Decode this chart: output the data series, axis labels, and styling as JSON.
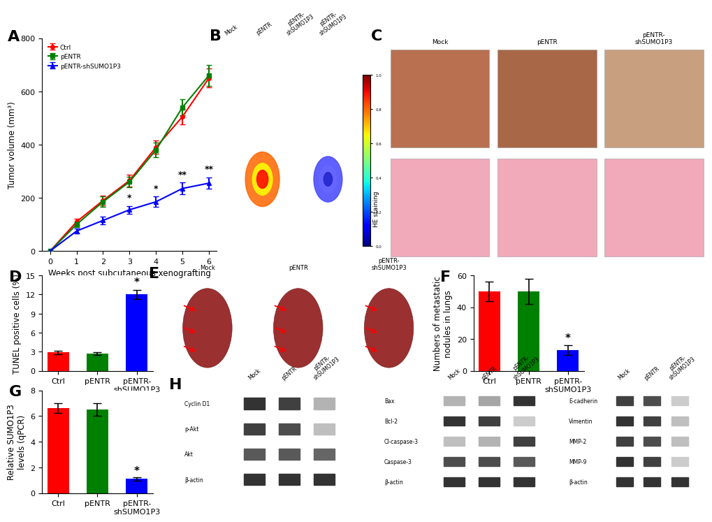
{
  "panel_A": {
    "weeks": [
      0,
      1,
      2,
      3,
      4,
      5,
      6
    ],
    "ctrl_mean": [
      0,
      110,
      190,
      265,
      390,
      505,
      650
    ],
    "ctrl_err": [
      0,
      12,
      18,
      22,
      25,
      30,
      35
    ],
    "pentr_mean": [
      0,
      100,
      185,
      260,
      380,
      540,
      660
    ],
    "pentr_err": [
      0,
      10,
      20,
      20,
      28,
      30,
      40
    ],
    "sh_mean": [
      0,
      75,
      115,
      155,
      185,
      235,
      255
    ],
    "sh_err": [
      0,
      10,
      14,
      14,
      20,
      22,
      22
    ],
    "ctrl_color": "#FF0000",
    "pentr_color": "#008000",
    "sh_color": "#0000FF",
    "xlabel": "Weeks post subcutaneous xenografting",
    "ylabel": "Tumor volume (mm³)",
    "ymax": 800,
    "yticks": [
      0,
      200,
      400,
      600,
      800
    ],
    "sig_weeks": [
      3,
      4,
      5,
      6
    ],
    "sig_labels": [
      "*",
      "*",
      "**",
      "**"
    ],
    "legend": [
      "Ctrl",
      "pENTR",
      "pENTR-shSUMO1P3"
    ]
  },
  "panel_D": {
    "categories": [
      "Ctrl",
      "pENTR",
      "pENTR-\nshSUMO1P3"
    ],
    "values": [
      2.9,
      2.7,
      12.0
    ],
    "errors": [
      0.28,
      0.22,
      0.75
    ],
    "colors": [
      "#FF0000",
      "#008000",
      "#0000FF"
    ],
    "ylabel": "TUNEL positive cells (%)",
    "ymax": 15,
    "yticks": [
      0,
      3,
      6,
      9,
      12,
      15
    ],
    "sig_bar": 2,
    "sig_label": "*"
  },
  "panel_F": {
    "categories": [
      "Ctrl",
      "pENTR",
      "pENTR-\nshSUMO1P3"
    ],
    "values": [
      50,
      50,
      13
    ],
    "errors": [
      6,
      8,
      3
    ],
    "colors": [
      "#FF0000",
      "#008000",
      "#0000FF"
    ],
    "ylabel": "Numbers of metastatic\nnodules in lungs",
    "ymax": 60,
    "yticks": [
      0,
      20,
      40,
      60
    ],
    "sig_bar": 2,
    "sig_label": "*"
  },
  "panel_G": {
    "categories": [
      "Ctrl",
      "pENTR",
      "pENTR-\nshSUMO1P3"
    ],
    "values": [
      6.6,
      6.5,
      1.1
    ],
    "errors": [
      0.38,
      0.48,
      0.12
    ],
    "colors": [
      "#FF0000",
      "#008000",
      "#0000FF"
    ],
    "ylabel": "Relative SUMO1P3\nlevels (qPCR)",
    "ymax": 8,
    "yticks": [
      0,
      2,
      4,
      6,
      8
    ],
    "sig_bar": 2,
    "sig_label": "*"
  },
  "panel_labels_fontsize": 16,
  "axis_label_fontsize": 8.5,
  "tick_fontsize": 8,
  "bar_width": 0.55,
  "bg_color": "#FFFFFF",
  "wb_labels_left": [
    "Cyclin D1",
    "p-Akt",
    "Akt",
    "β-actin"
  ],
  "wb_labels_mid": [
    "Bax",
    "Bcl-2",
    "Cl-caspase-3",
    "Caspase-3",
    "β-actin"
  ],
  "wb_labels_right": [
    "E-cadherin",
    "Vimentin",
    "MMP-2",
    "MMP-9",
    "β-actin"
  ],
  "wb_headers": [
    "Mock",
    "pENTR",
    "pENTR-\nshSUMO1P3"
  ]
}
